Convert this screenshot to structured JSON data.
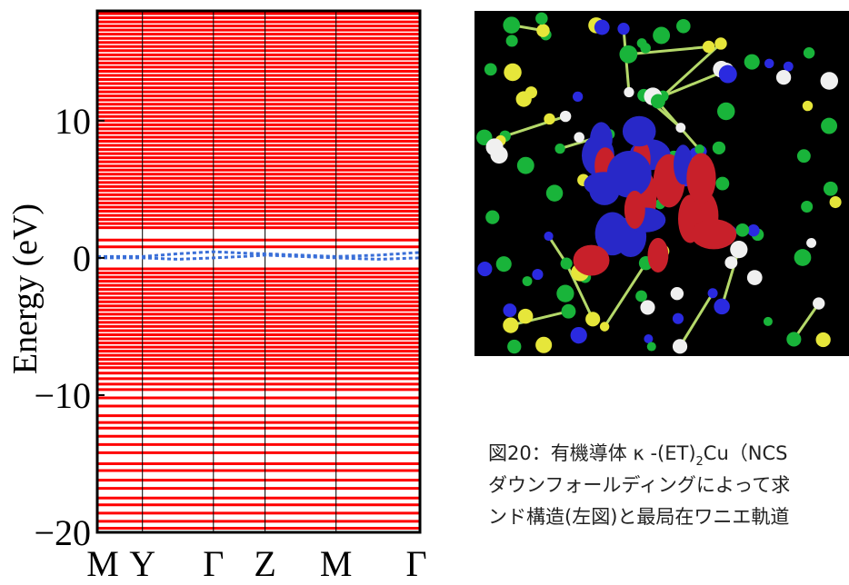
{
  "chart_data": {
    "type": "band",
    "ylabel": "Energy (eV)",
    "xlim": [
      0,
      1
    ],
    "xticks": [
      {
        "value": 0,
        "label": "M"
      },
      {
        "value": 0.14,
        "label": "Y"
      },
      {
        "value": 0.36,
        "label": "Γ"
      },
      {
        "value": 0.52,
        "label": "Z"
      },
      {
        "value": 0.74,
        "label": "M"
      },
      {
        "value": 1,
        "label": "Γ"
      }
    ],
    "ylim": [
      -20,
      18
    ],
    "yticks": [
      {
        "value": -20,
        "label": "−20"
      },
      {
        "value": -10,
        "label": "−10"
      },
      0,
      10
    ],
    "bands": {
      "color": "#ff0000",
      "energies": [
        17.8,
        17.5,
        17.2,
        16.9,
        16.6,
        16.3,
        16.0,
        15.7,
        15.4,
        15.1,
        14.8,
        14.5,
        14.2,
        13.9,
        13.6,
        13.3,
        13.0,
        12.7,
        12.4,
        12.1,
        11.8,
        11.5,
        11.2,
        10.9,
        10.6,
        10.3,
        10.0,
        9.7,
        9.4,
        9.1,
        8.8,
        8.5,
        8.2,
        7.9,
        7.6,
        7.3,
        7.0,
        6.7,
        6.4,
        6.1,
        5.8,
        5.5,
        5.2,
        4.9,
        4.6,
        4.3,
        4.0,
        3.7,
        3.4,
        3.1,
        2.8,
        2.5,
        2.2,
        1.3,
        0.8,
        -0.8,
        -1.1,
        -1.4,
        -1.7,
        -2.0,
        -2.3,
        -2.6,
        -2.9,
        -3.2,
        -3.5,
        -3.8,
        -4.1,
        -4.4,
        -4.7,
        -5.0,
        -5.3,
        -5.6,
        -5.9,
        -6.2,
        -6.5,
        -6.8,
        -7.1,
        -7.4,
        -7.7,
        -8.0,
        -8.4,
        -8.8,
        -9.2,
        -9.6,
        -10.2,
        -10.8,
        -11.5,
        -12.0,
        -12.4,
        -13.0,
        -13.6,
        -14.2,
        -15.0,
        -15.5,
        -16.2,
        -16.8,
        -17.5,
        -18.0,
        -18.6,
        -19.2,
        -19.7
      ]
    },
    "wannier_bands": {
      "color": "#3a6fd8",
      "x": [
        0,
        0.14,
        0.25,
        0.36,
        0.45,
        0.52,
        0.63,
        0.74,
        0.87,
        1
      ],
      "series": [
        [
          0.1,
          0.1,
          0.3,
          0.45,
          0.35,
          0.3,
          0.2,
          0.1,
          0.2,
          0.4
        ],
        [
          0,
          0,
          -0.1,
          0,
          0.1,
          0.2,
          0.1,
          0,
          -0.1,
          0
        ]
      ]
    }
  },
  "caption": {
    "lines": [
      [
        "図20：有機導体 κ -(ET)",
        "2",
        "Cu（NCS"
      ],
      [
        "ダウンフォールディングによって求"
      ],
      [
        "ンド構造(左図)と最局在ワニエ軌道"
      ]
    ]
  }
}
